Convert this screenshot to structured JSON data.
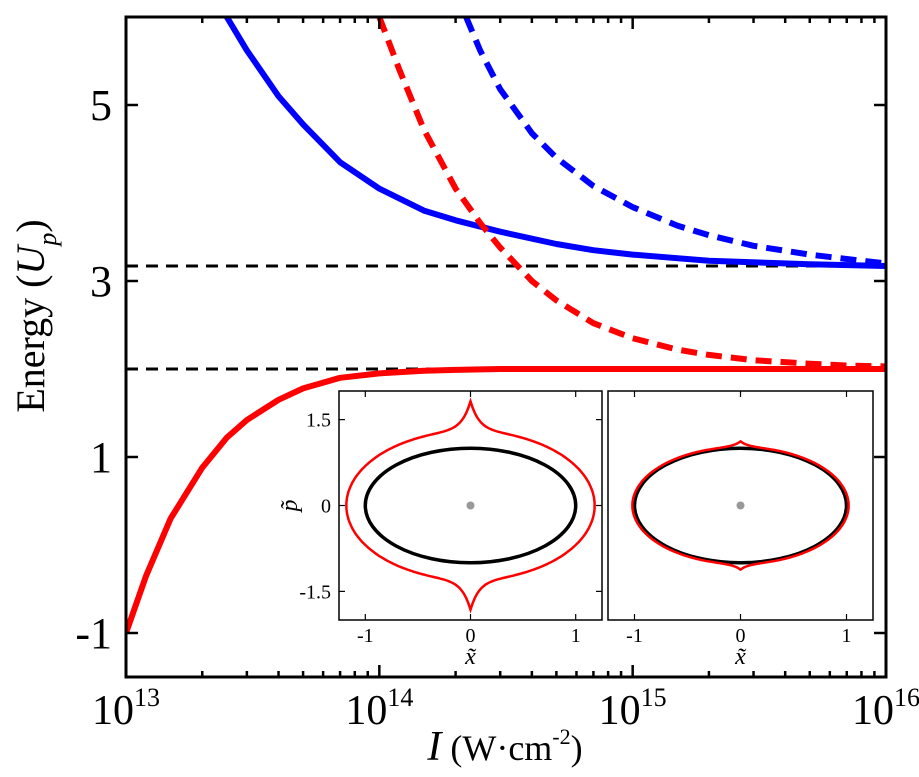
{
  "chart_data": [
    {
      "type": "line",
      "title": "",
      "xlabel": {
        "symbol": "I",
        "unit": " (W·cm",
        "unit_exp": "-2",
        "close": ")"
      },
      "ylabel": {
        "text": "Energy (",
        "symbol": "U",
        "sub": "p",
        "close": ")"
      },
      "xscale": "log",
      "xlim": [
        10000000000000.0,
        1e+16
      ],
      "ylim": [
        -1.5,
        6
      ],
      "xticks": [
        {
          "value": 10000000000000.0,
          "base": "10",
          "exp": "13"
        },
        {
          "value": 100000000000000.0,
          "base": "10",
          "exp": "14"
        },
        {
          "value": 1000000000000000.0,
          "base": "10",
          "exp": "15"
        },
        {
          "value": 1e+16,
          "base": "10",
          "exp": "16"
        }
      ],
      "yticks": [
        {
          "value": 5,
          "label": "5"
        },
        {
          "value": 3,
          "label": "3"
        },
        {
          "value": 1,
          "label": "1"
        },
        {
          "value": -1,
          "label": "-1"
        }
      ],
      "hlines": [
        {
          "y": 3.17,
          "color": "#000000",
          "style": "dashed"
        },
        {
          "y": 2.0,
          "color": "#000000",
          "style": "dashed"
        }
      ],
      "series": [
        {
          "color": "#0000ff",
          "style": "solid",
          "x": [
            25000000000000.0,
            30000000000000.0,
            40000000000000.0,
            50000000000000.0,
            70000000000000.0,
            100000000000000.0,
            150000000000000.0,
            200000000000000.0,
            300000000000000.0,
            500000000000000.0,
            700000000000000.0,
            1000000000000000.0,
            2000000000000000.0,
            5000000000000000.0,
            1e+16
          ],
          "y": [
            6.0,
            5.62,
            5.1,
            4.78,
            4.35,
            4.05,
            3.8,
            3.69,
            3.56,
            3.42,
            3.35,
            3.3,
            3.23,
            3.19,
            3.17
          ]
        },
        {
          "color": "#0000ff",
          "style": "dashed",
          "x": [
            220000000000000.0,
            250000000000000.0,
            300000000000000.0,
            400000000000000.0,
            500000000000000.0,
            700000000000000.0,
            1000000000000000.0,
            1500000000000000.0,
            2000000000000000.0,
            3000000000000000.0,
            5000000000000000.0,
            7000000000000000.0,
            1e+16
          ],
          "y": [
            6.0,
            5.62,
            5.18,
            4.68,
            4.4,
            4.08,
            3.84,
            3.63,
            3.52,
            3.4,
            3.3,
            3.25,
            3.2
          ]
        },
        {
          "color": "#ff0000",
          "style": "dashed",
          "x": [
            100000000000000.0,
            120000000000000.0,
            150000000000000.0,
            200000000000000.0,
            250000000000000.0,
            300000000000000.0,
            400000000000000.0,
            500000000000000.0,
            700000000000000.0,
            1000000000000000.0,
            1500000000000000.0,
            2000000000000000.0,
            3000000000000000.0,
            5000000000000000.0,
            7000000000000000.0,
            1e+16
          ],
          "y": [
            6.0,
            5.4,
            4.72,
            4.05,
            3.66,
            3.38,
            3.0,
            2.78,
            2.52,
            2.35,
            2.22,
            2.16,
            2.1,
            2.06,
            2.04,
            2.03
          ]
        },
        {
          "color": "#ff0000",
          "style": "solid",
          "x": [
            10000000000000.0,
            12000000000000.0,
            15000000000000.0,
            20000000000000.0,
            25000000000000.0,
            30000000000000.0,
            40000000000000.0,
            50000000000000.0,
            70000000000000.0,
            100000000000000.0,
            150000000000000.0,
            200000000000000.0,
            300000000000000.0,
            500000000000000.0,
            1000000000000000.0,
            1e+16
          ],
          "y": [
            -1.0,
            -0.35,
            0.3,
            0.88,
            1.22,
            1.42,
            1.65,
            1.78,
            1.9,
            1.95,
            1.98,
            1.99,
            2.0,
            2.0,
            2.0,
            2.0
          ]
        }
      ]
    },
    {
      "type": "line",
      "title": "",
      "xlabel": "x̃",
      "ylabel": "p̃",
      "xlim": [
        -1.25,
        1.25
      ],
      "ylim": [
        -2.0,
        2.0
      ],
      "xticks": [
        {
          "value": -1,
          "label": "-1"
        },
        {
          "value": 0,
          "label": "0"
        },
        {
          "value": 1,
          "label": "1"
        }
      ],
      "yticks": [
        {
          "value": 1.5,
          "label": "1.5"
        },
        {
          "value": 0,
          "label": "0"
        },
        {
          "value": -1.5,
          "label": "-1.5"
        }
      ],
      "reference_point": {
        "x": 0,
        "y": 0,
        "color": "#999999"
      },
      "series": [
        {
          "color": "#000000",
          "style": "solid",
          "shape": "ellipse",
          "x_radius": 1.0,
          "y_radius": 1.0
        },
        {
          "color": "#ff0000",
          "style": "solid",
          "shape": "cusped-orbit",
          "x_radius": 1.18,
          "y_radius": 1.3,
          "cusp_height": 1.82
        }
      ]
    },
    {
      "type": "line",
      "title": "",
      "xlabel": "x̃",
      "ylabel": "",
      "xlim": [
        -1.25,
        1.25
      ],
      "ylim": [
        -2.0,
        2.0
      ],
      "xticks": [
        {
          "value": -1,
          "label": "-1"
        },
        {
          "value": 0,
          "label": "0"
        },
        {
          "value": 1,
          "label": "1"
        }
      ],
      "yticks": [],
      "reference_point": {
        "x": 0,
        "y": 0,
        "color": "#999999"
      },
      "series": [
        {
          "color": "#000000",
          "style": "solid",
          "shape": "ellipse",
          "x_radius": 1.0,
          "y_radius": 1.0
        },
        {
          "color": "#ff0000",
          "style": "solid",
          "shape": "cusped-orbit",
          "x_radius": 1.02,
          "y_radius": 1.02,
          "cusp_height": 1.12
        }
      ]
    }
  ]
}
